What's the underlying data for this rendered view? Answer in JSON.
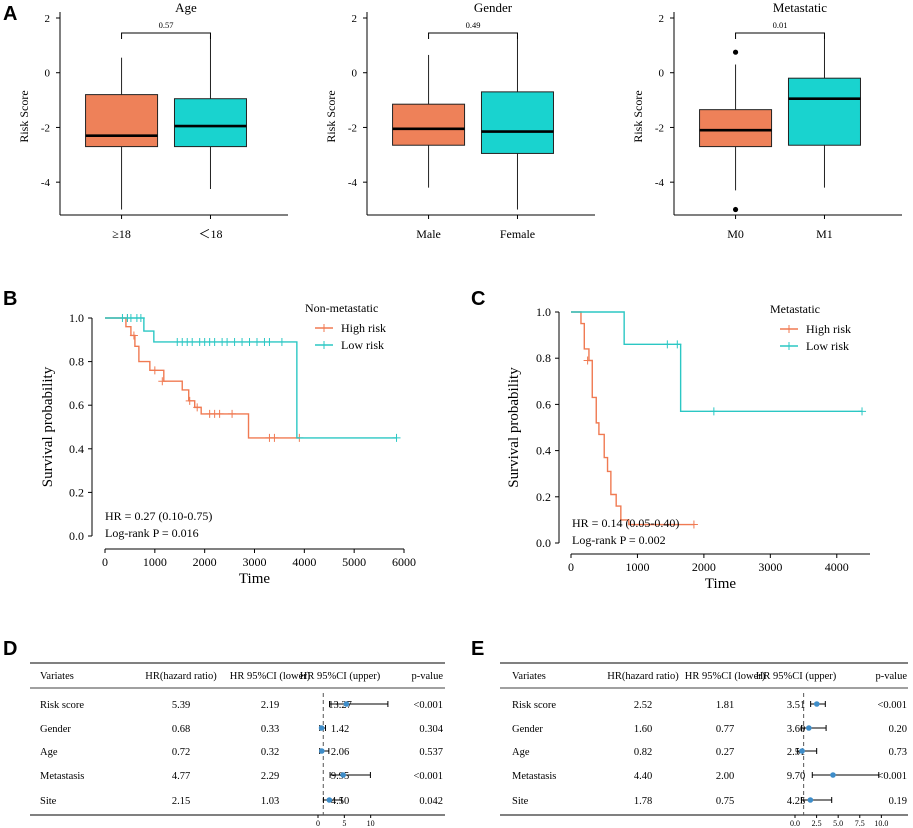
{
  "panels": {
    "A": "A",
    "B": "B",
    "C": "C",
    "D": "D",
    "E": "E"
  },
  "colors": {
    "orange": "#EE8159",
    "teal": "#19D3CF",
    "orange_line": "#F07A52",
    "teal_line": "#2BC7C4",
    "forest_dot": "#3E8DC9",
    "dash": "#555555"
  },
  "chart_data": [
    {
      "id": "box_age",
      "type": "box",
      "title": "Age",
      "ylabel": "Risk Score",
      "ylim": [
        -5.2,
        2
      ],
      "yticks": [
        "2",
        "0",
        "-2",
        "-4"
      ],
      "pvalue": "0.57",
      "groups": [
        {
          "label": "≥18",
          "color": "#EE8159",
          "min": -5.0,
          "q1": -2.7,
          "median": -2.3,
          "q3": -0.8,
          "max": 0.55,
          "outliers": []
        },
        {
          "label": "＜18",
          "color": "#19D3CF",
          "min": -4.25,
          "q1": -2.7,
          "median": -1.95,
          "q3": -0.95,
          "max": 1.35,
          "outliers": []
        }
      ]
    },
    {
      "id": "box_gender",
      "type": "box",
      "title": "Gender",
      "ylabel": "Risk Score",
      "ylim": [
        -5.2,
        2
      ],
      "yticks": [
        "2",
        "0",
        "-2",
        "-4"
      ],
      "pvalue": "0.49",
      "groups": [
        {
          "label": "Male",
          "color": "#EE8159",
          "min": -4.2,
          "q1": -2.65,
          "median": -2.05,
          "q3": -1.15,
          "max": 0.65,
          "outliers": []
        },
        {
          "label": "Female",
          "color": "#19D3CF",
          "min": -5.0,
          "q1": -2.95,
          "median": -2.15,
          "q3": -0.7,
          "max": 1.35,
          "outliers": []
        }
      ]
    },
    {
      "id": "box_metastatic",
      "type": "box",
      "title": "Metastatic",
      "ylabel": "Risk Score",
      "ylim": [
        -5.2,
        2
      ],
      "yticks": [
        "2",
        "0",
        "-2",
        "-4"
      ],
      "pvalue": "0.01",
      "groups": [
        {
          "label": "M0",
          "color": "#EE8159",
          "min": -4.3,
          "q1": -2.7,
          "median": -2.1,
          "q3": -1.35,
          "max": 0.3,
          "outliers": [
            0.75,
            -5.0
          ]
        },
        {
          "label": "M1",
          "color": "#19D3CF",
          "min": -4.2,
          "q1": -2.65,
          "median": -0.95,
          "q3": -0.2,
          "max": 1.35,
          "outliers": []
        }
      ]
    },
    {
      "id": "km_nonmetastatic",
      "type": "line",
      "subtype": "kaplan-meier",
      "legend_title": "Non-metastatic",
      "xlabel": "Time",
      "ylabel": "Survival probability",
      "xlim": [
        0,
        6000
      ],
      "ylim": [
        0,
        1
      ],
      "xticks": [
        "0",
        "1000",
        "2000",
        "3000",
        "4000",
        "5000",
        "6000"
      ],
      "yticks": [
        "0.0",
        "0.2",
        "0.4",
        "0.6",
        "0.8",
        "1.0"
      ],
      "hr_text": "HR = 0.27 (0.10-0.75)",
      "logrank_text": "Log-rank P = 0.016",
      "series": [
        {
          "name": "High risk",
          "color": "#F07A52",
          "steps": [
            [
              0,
              1.0
            ],
            [
              420,
              0.96
            ],
            [
              520,
              0.92
            ],
            [
              600,
              0.87
            ],
            [
              680,
              0.8
            ],
            [
              900,
              0.76
            ],
            [
              1180,
              0.71
            ],
            [
              1550,
              0.67
            ],
            [
              1680,
              0.62
            ],
            [
              1800,
              0.59
            ],
            [
              1930,
              0.56
            ],
            [
              2880,
              0.45
            ],
            [
              3900,
              0.45
            ]
          ],
          "censor": [
            [
              450,
              1.0
            ],
            [
              580,
              0.92
            ],
            [
              1000,
              0.76
            ],
            [
              1150,
              0.71
            ],
            [
              1700,
              0.62
            ],
            [
              1850,
              0.59
            ],
            [
              2100,
              0.56
            ],
            [
              2200,
              0.56
            ],
            [
              2300,
              0.56
            ],
            [
              2550,
              0.56
            ],
            [
              3300,
              0.45
            ],
            [
              3400,
              0.45
            ],
            [
              3900,
              0.45
            ]
          ]
        },
        {
          "name": "Low risk",
          "color": "#2BC7C4",
          "steps": [
            [
              0,
              1.0
            ],
            [
              780,
              0.94
            ],
            [
              980,
              0.89
            ],
            [
              3850,
              0.45
            ],
            [
              5850,
              0.45
            ]
          ],
          "censor": [
            [
              350,
              1.0
            ],
            [
              450,
              1.0
            ],
            [
              520,
              1.0
            ],
            [
              640,
              1.0
            ],
            [
              720,
              1.0
            ],
            [
              1450,
              0.89
            ],
            [
              1550,
              0.89
            ],
            [
              1650,
              0.89
            ],
            [
              1750,
              0.89
            ],
            [
              1900,
              0.89
            ],
            [
              2000,
              0.89
            ],
            [
              2100,
              0.89
            ],
            [
              2200,
              0.89
            ],
            [
              2350,
              0.89
            ],
            [
              2450,
              0.89
            ],
            [
              2600,
              0.89
            ],
            [
              2750,
              0.89
            ],
            [
              2900,
              0.89
            ],
            [
              3050,
              0.89
            ],
            [
              3200,
              0.89
            ],
            [
              3300,
              0.89
            ],
            [
              3550,
              0.89
            ],
            [
              5850,
              0.45
            ]
          ]
        }
      ]
    },
    {
      "id": "km_metastatic",
      "type": "line",
      "subtype": "kaplan-meier",
      "legend_title": "Metastatic",
      "xlabel": "Time",
      "ylabel": "Survival probability",
      "xlim": [
        0,
        4500
      ],
      "ylim": [
        0,
        1
      ],
      "xticks": [
        "0",
        "1000",
        "2000",
        "3000",
        "4000"
      ],
      "yticks": [
        "0.0",
        "0.2",
        "0.4",
        "0.6",
        "0.8",
        "1.0"
      ],
      "hr_text": "HR = 0.14 (0.05-0.40)",
      "logrank_text": "Log-rank P = 0.002",
      "series": [
        {
          "name": "High risk",
          "color": "#F07A52",
          "steps": [
            [
              0,
              1.0
            ],
            [
              150,
              0.95
            ],
            [
              200,
              0.84
            ],
            [
              270,
              0.79
            ],
            [
              320,
              0.63
            ],
            [
              380,
              0.52
            ],
            [
              420,
              0.47
            ],
            [
              500,
              0.37
            ],
            [
              550,
              0.31
            ],
            [
              600,
              0.21
            ],
            [
              680,
              0.16
            ],
            [
              750,
              0.1
            ],
            [
              870,
              0.08
            ],
            [
              1850,
              0.08
            ]
          ],
          "censor": [
            [
              250,
              0.79
            ],
            [
              1850,
              0.08
            ]
          ]
        },
        {
          "name": "Low risk",
          "color": "#2BC7C4",
          "steps": [
            [
              0,
              1.0
            ],
            [
              800,
              0.86
            ],
            [
              1650,
              0.57
            ],
            [
              4380,
              0.57
            ]
          ],
          "censor": [
            [
              1450,
              0.86
            ],
            [
              1600,
              0.86
            ],
            [
              2150,
              0.57
            ],
            [
              4380,
              0.57
            ]
          ]
        }
      ]
    },
    {
      "id": "forest_univariate",
      "type": "table",
      "subtype": "forest",
      "columns": [
        "Variates",
        "HR(hazard ratio)",
        "HR 95%CI (lower)",
        "HR 95%CI (upper)",
        "p-value"
      ],
      "xlim": [
        0,
        15
      ],
      "xticks": [
        "0",
        "5",
        "10"
      ],
      "xtick_values": [
        0,
        5,
        10
      ],
      "ref_line": 1,
      "rows": [
        {
          "variate": "Risk score",
          "hr": 5.39,
          "lower": 2.19,
          "upper": 13.27,
          "hr_text": "5.39",
          "lower_text": "2.19",
          "upper_text": "13.27",
          "p": "<0.001"
        },
        {
          "variate": "Gender",
          "hr": 0.68,
          "lower": 0.33,
          "upper": 1.42,
          "hr_text": "0.68",
          "lower_text": "0.33",
          "upper_text": "1.42",
          "p": "0.304"
        },
        {
          "variate": "Age",
          "hr": 0.72,
          "lower": 0.32,
          "upper": 2.06,
          "hr_text": "0.72",
          "lower_text": "0.32",
          "upper_text": "2.06",
          "p": "0.537"
        },
        {
          "variate": "Metastasis",
          "hr": 4.77,
          "lower": 2.29,
          "upper": 9.95,
          "hr_text": "4.77",
          "lower_text": "2.29",
          "upper_text": "9.95",
          "p": "<0.001"
        },
        {
          "variate": "Site",
          "hr": 2.15,
          "lower": 1.03,
          "upper": 4.5,
          "hr_text": "2.15",
          "lower_text": "1.03",
          "upper_text": "4.50",
          "p": "0.042"
        }
      ]
    },
    {
      "id": "forest_multivariate",
      "type": "table",
      "subtype": "forest",
      "columns": [
        "Variates",
        "HR(hazard ratio)",
        "HR 95%CI (lower)",
        "HR 95%CI (upper)",
        "p-value"
      ],
      "xlim": [
        0,
        11
      ],
      "xticks": [
        "0.0",
        "2.5",
        "5.0",
        "7.5",
        "10.0"
      ],
      "xtick_values": [
        0,
        2.5,
        5,
        7.5,
        10
      ],
      "ref_line": 1,
      "rows": [
        {
          "variate": "Risk score",
          "hr": 2.52,
          "lower": 1.81,
          "upper": 3.51,
          "hr_text": "2.52",
          "lower_text": "1.81",
          "upper_text": "3.51",
          "p": "<0.001"
        },
        {
          "variate": "Gender",
          "hr": 1.6,
          "lower": 0.77,
          "upper": 3.6,
          "hr_text": "1.60",
          "lower_text": "0.77",
          "upper_text": "3.60",
          "p": "0.20"
        },
        {
          "variate": "Age",
          "hr": 0.82,
          "lower": 0.27,
          "upper": 2.51,
          "hr_text": "0.82",
          "lower_text": "0.27",
          "upper_text": "2.51",
          "p": "0.73"
        },
        {
          "variate": "Metastasis",
          "hr": 4.4,
          "lower": 2.0,
          "upper": 9.7,
          "hr_text": "4.40",
          "lower_text": "2.00",
          "upper_text": "9.70",
          "p": "<0.001"
        },
        {
          "variate": "Site",
          "hr": 1.78,
          "lower": 0.75,
          "upper": 4.25,
          "hr_text": "1.78",
          "lower_text": "0.75",
          "upper_text": "4.25",
          "p": "0.19"
        }
      ]
    }
  ]
}
